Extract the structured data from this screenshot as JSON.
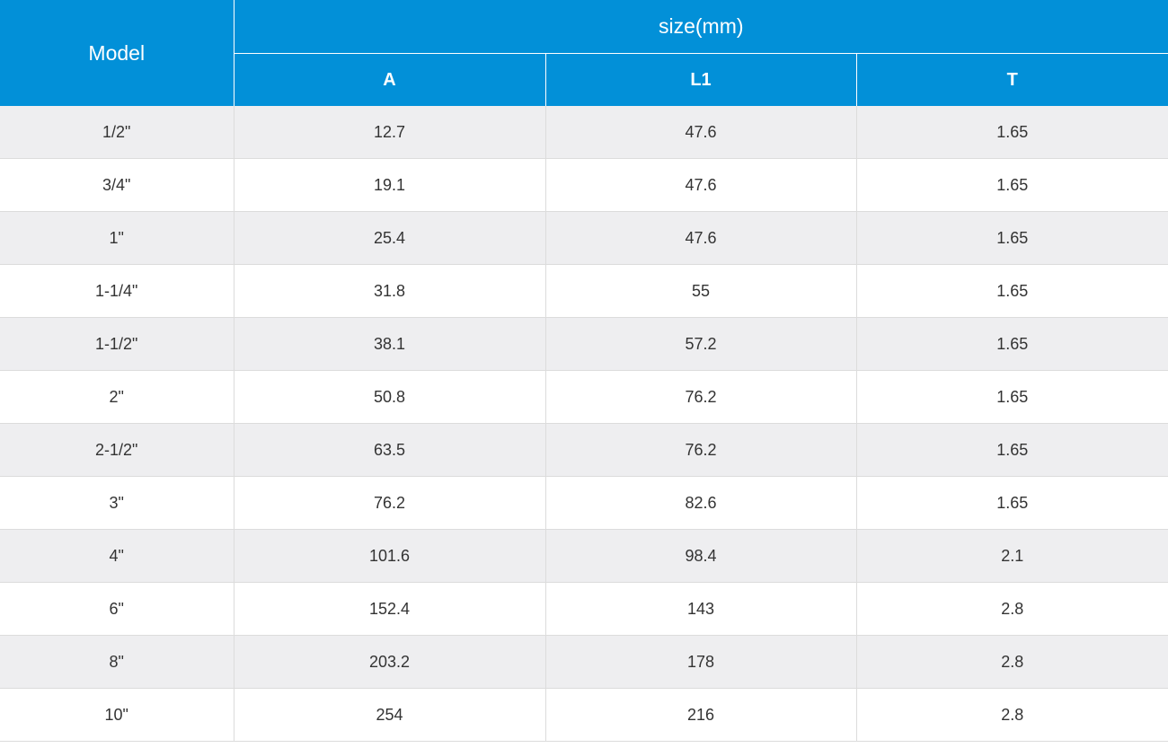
{
  "header": {
    "model_label": "Model",
    "group_label": "size(mm)",
    "columns": [
      "A",
      "L1",
      "T"
    ]
  },
  "rows": [
    {
      "model": "1/2\"",
      "a": "12.7",
      "l1": "47.6",
      "t": "1.65"
    },
    {
      "model": "3/4\"",
      "a": "19.1",
      "l1": "47.6",
      "t": "1.65"
    },
    {
      "model": "1\"",
      "a": "25.4",
      "l1": "47.6",
      "t": "1.65"
    },
    {
      "model": "1-1/4\"",
      "a": "31.8",
      "l1": "55",
      "t": "1.65"
    },
    {
      "model": "1-1/2\"",
      "a": "38.1",
      "l1": "57.2",
      "t": "1.65"
    },
    {
      "model": "2\"",
      "a": "50.8",
      "l1": "76.2",
      "t": "1.65"
    },
    {
      "model": "2-1/2\"",
      "a": "63.5",
      "l1": "76.2",
      "t": "1.65"
    },
    {
      "model": "3\"",
      "a": "76.2",
      "l1": "82.6",
      "t": "1.65"
    },
    {
      "model": "4\"",
      "a": "101.6",
      "l1": "98.4",
      "t": "2.1"
    },
    {
      "model": "6\"",
      "a": "152.4",
      "l1": "143",
      "t": "2.8"
    },
    {
      "model": "8\"",
      "a": "203.2",
      "l1": "178",
      "t": "2.8"
    },
    {
      "model": "10\"",
      "a": "254",
      "l1": "216",
      "t": "2.8"
    }
  ],
  "colors": {
    "header_bg": "#0290d8",
    "row_alt_bg": "#eeeef0",
    "text": "#333333"
  }
}
